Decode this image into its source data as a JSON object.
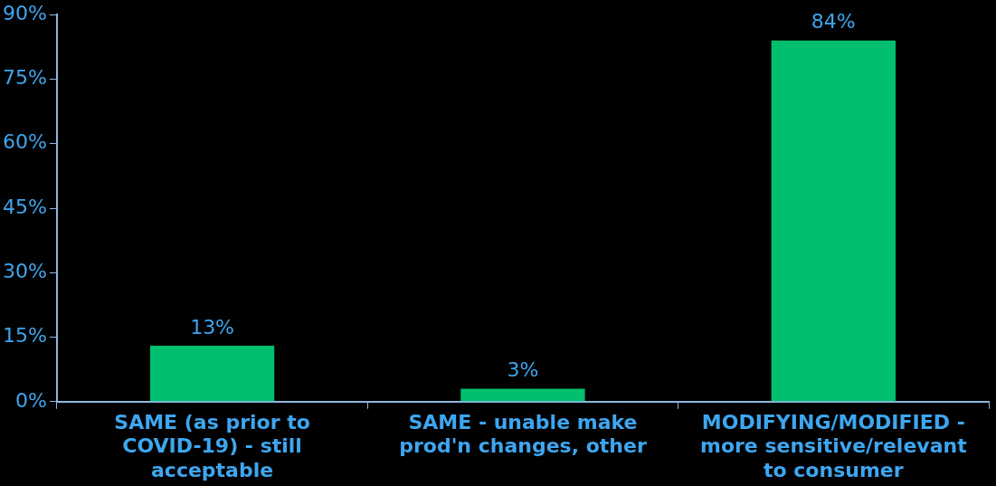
{
  "chart_data": {
    "type": "bar",
    "categories": [
      "SAME (as prior to COVID-19) - still acceptable",
      "SAME - unable make prod'n changes, other",
      "MODIFYING/MODIFIED - more sensitive/relevant to consumer"
    ],
    "values": [
      13,
      3,
      84
    ],
    "color": "#00bf6f",
    "value_labels": [
      "13%",
      "3%",
      "84%"
    ],
    "ylim": [
      0,
      90
    ],
    "yticks": [
      {
        "value": 0,
        "label": "0%"
      },
      {
        "value": 15,
        "label": "15%"
      },
      {
        "value": 30,
        "label": "30%"
      },
      {
        "value": 45,
        "label": "45%"
      },
      {
        "value": 60,
        "label": "60%"
      },
      {
        "value": 75,
        "label": "75%"
      },
      {
        "value": 90,
        "label": "90%"
      }
    ],
    "grid": false,
    "legend": false
  }
}
